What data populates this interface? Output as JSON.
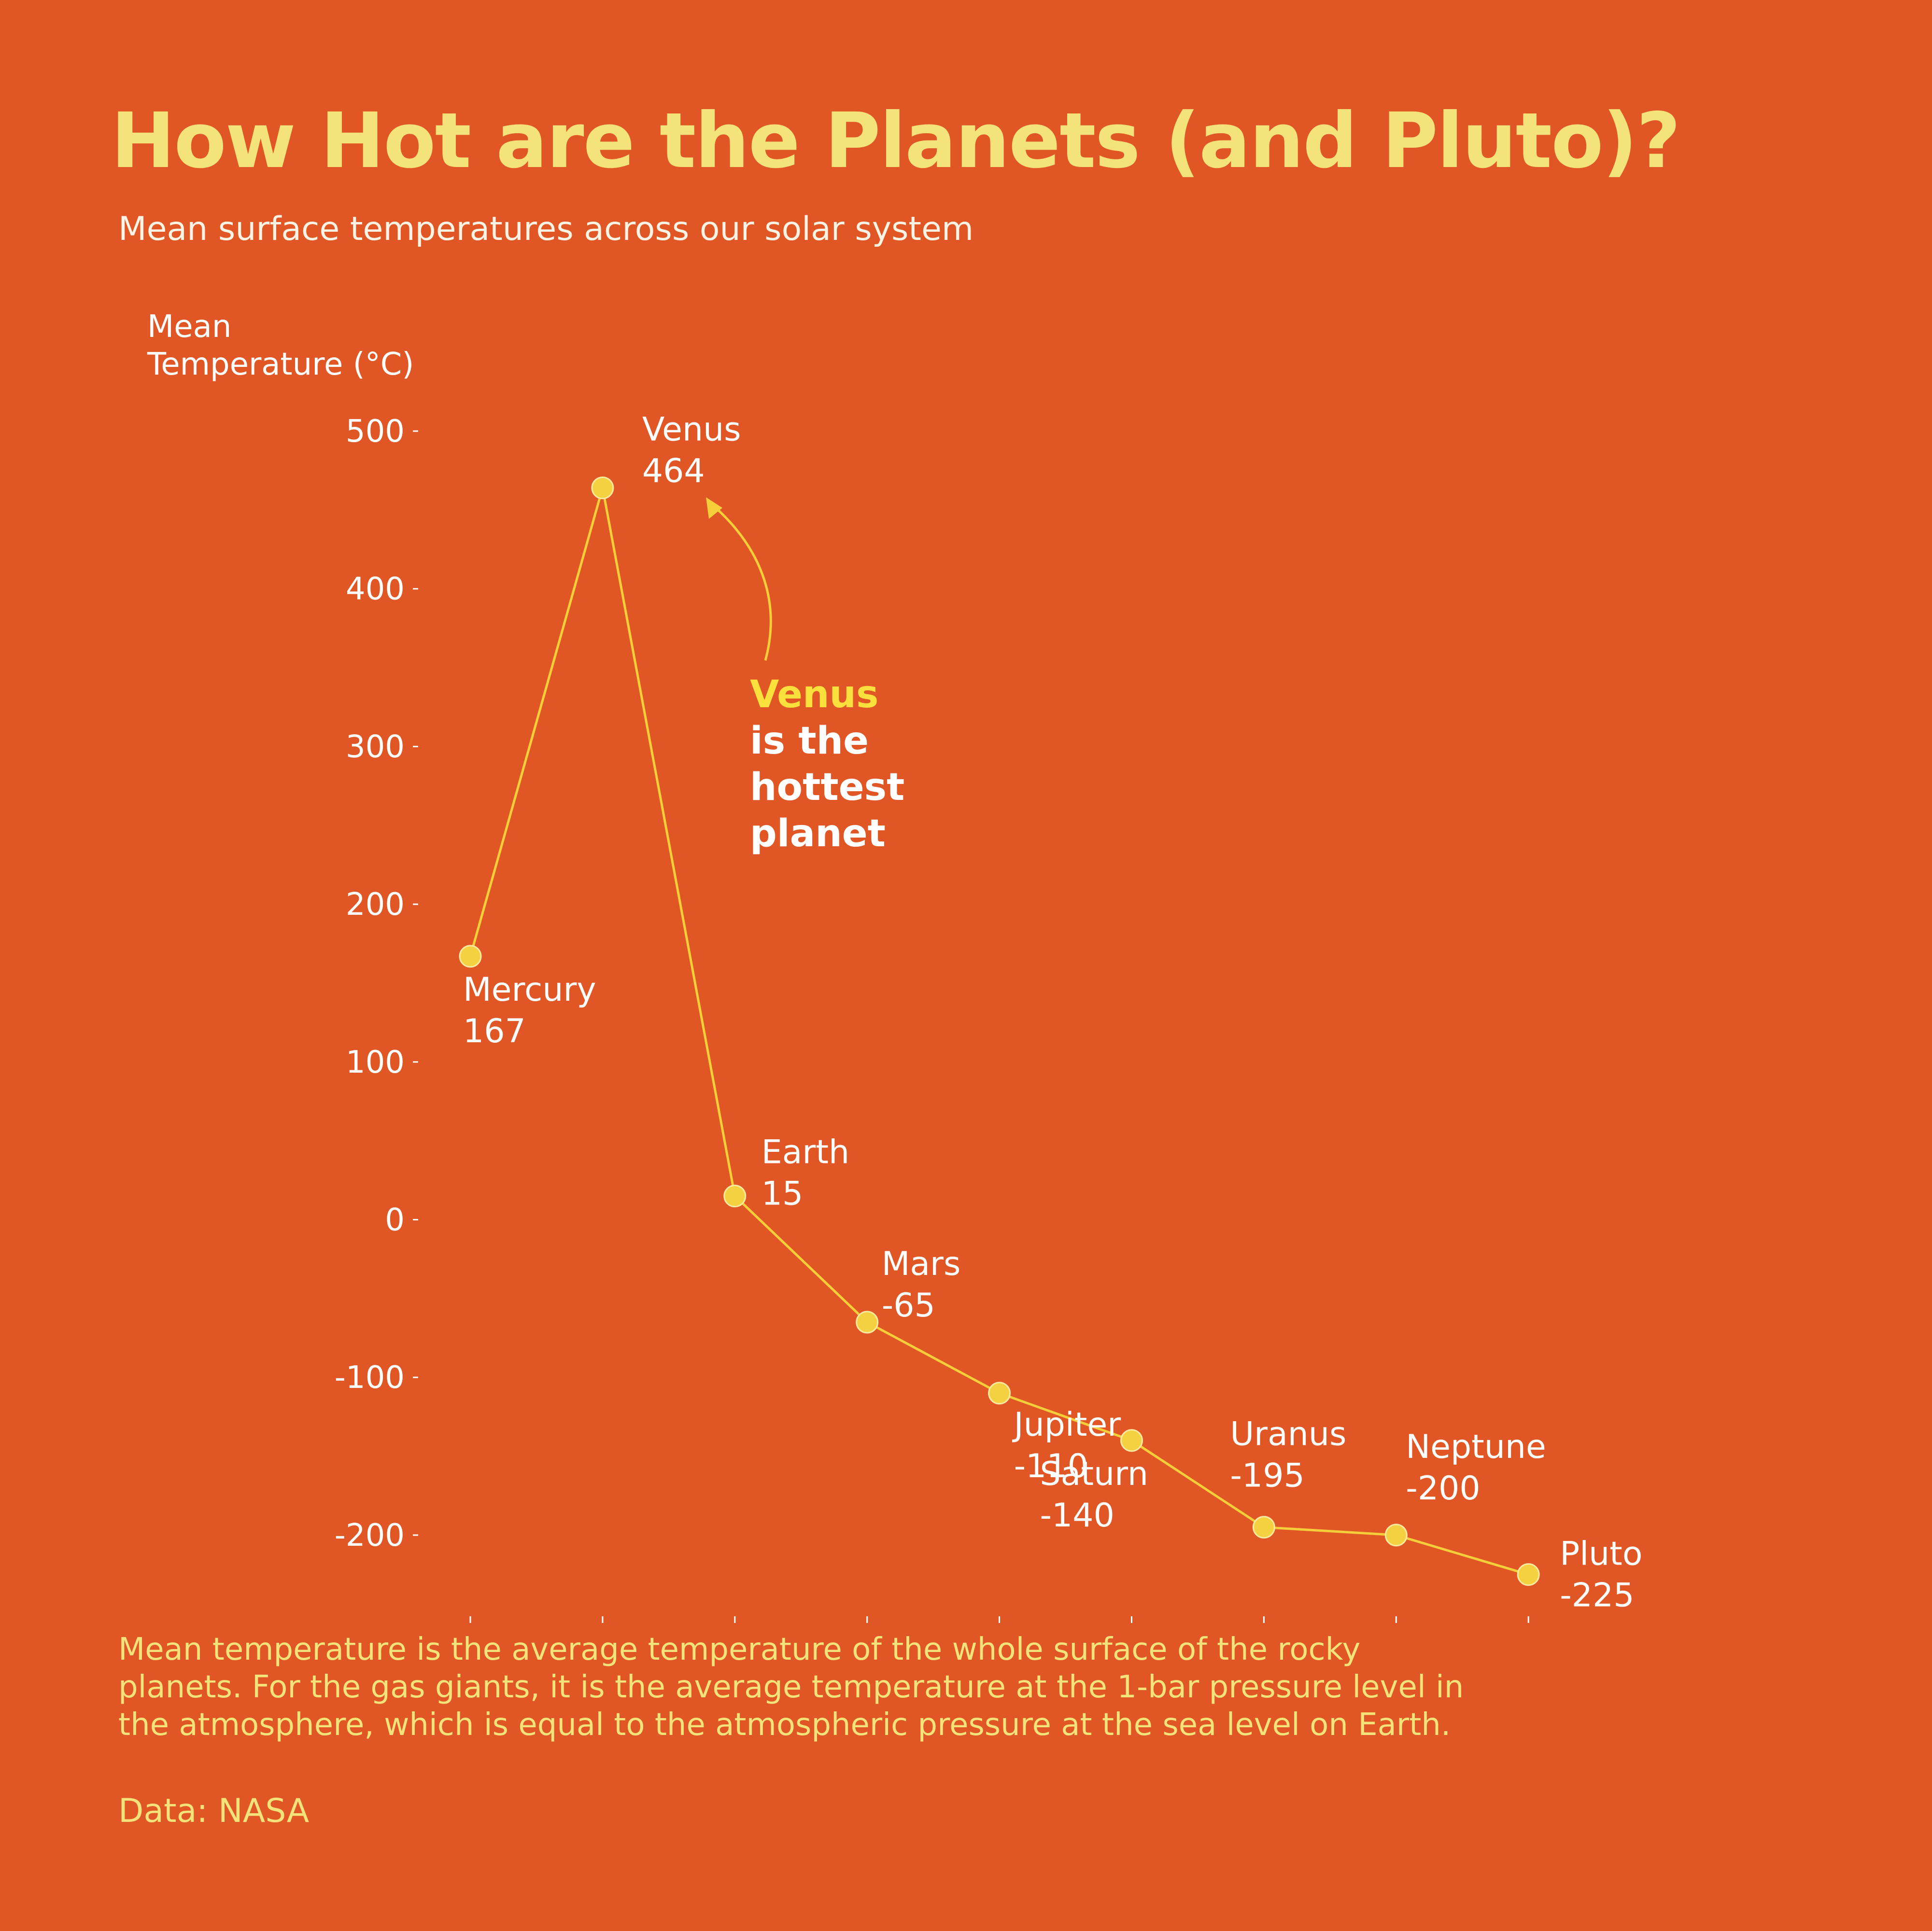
{
  "title": "How Hot are the Planets (and Pluto)?",
  "subtitle": "Mean surface temperatures across our solar system",
  "footnote": "Mean temperature is the average temperature of the whole surface of the rocky planets. For the gas giants, it is the average temperature at the 1-bar pressure level in the atmosphere, which is equal to the atmospheric pressure at the sea level on Earth.",
  "source": "Data: NASA",
  "annotation": {
    "highlight": "Venus",
    "lines": [
      "is the",
      "hottest",
      "planet"
    ]
  },
  "colors": {
    "background": "#e05624",
    "line": "#f5cf3a",
    "marker": "#f3d140",
    "title": "#f4e27a",
    "annotation_highlight": "#f9e03d"
  },
  "chart_data": {
    "type": "line",
    "title": "How Hot are the Planets (and Pluto)?",
    "xlabel": "",
    "ylabel": "Mean Temperature (°C)",
    "ylabel_lines": [
      "Mean",
      "Temperature (°C)"
    ],
    "categories": [
      "Mercury",
      "Venus",
      "Earth",
      "Mars",
      "Jupiter",
      "Saturn",
      "Uranus",
      "Neptune",
      "Pluto"
    ],
    "values": [
      167,
      464,
      15,
      -65,
      -110,
      -140,
      -195,
      -200,
      -225
    ],
    "yticks": [
      500,
      400,
      300,
      200,
      100,
      0,
      -100,
      -200
    ],
    "ylim": [
      -250,
      500
    ],
    "grid": false
  }
}
